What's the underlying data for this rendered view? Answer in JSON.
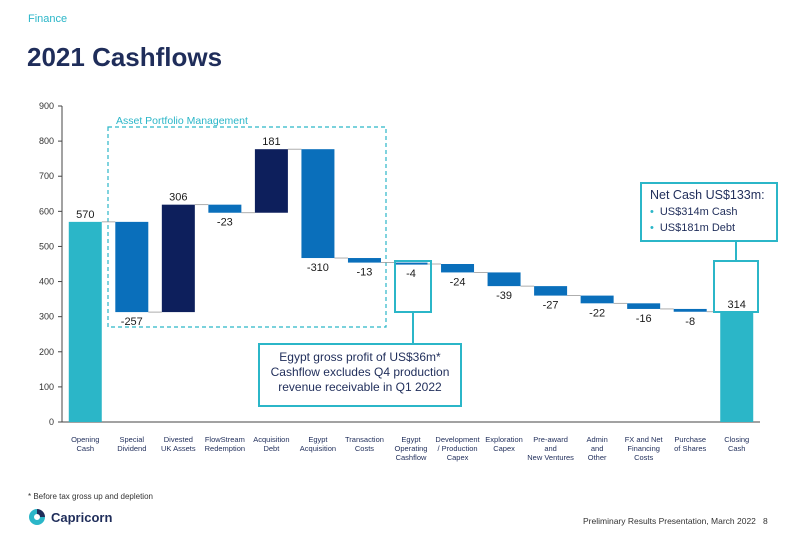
{
  "header": {
    "section": "Finance",
    "title": "2021 Cashflows"
  },
  "callouts": {
    "portfolio_label": "Asset Portfolio Management",
    "net_cash": {
      "title": "Net Cash US$133m:",
      "items": [
        "US$314m Cash",
        "US$181m Debt"
      ]
    },
    "egypt_note": [
      "Egypt gross profit of US$36m*",
      "Cashflow excludes Q4 production",
      "revenue receivable in Q1 2022"
    ]
  },
  "footer": {
    "footnote": "* Before tax gross up and depletion",
    "brand": "Capricorn",
    "presentation": "Preliminary Results Presentation, March 2022",
    "page": "8"
  },
  "colors": {
    "teal": "#2bb6c8",
    "blue": "#0a6fbb",
    "navy": "#0d1f5c",
    "title": "#1f2d5a"
  },
  "chart_data": {
    "type": "bar",
    "subtype": "waterfall",
    "ylim": [
      0,
      900
    ],
    "yticks": [
      0,
      100,
      200,
      300,
      400,
      500,
      600,
      700,
      800,
      900
    ],
    "bars": [
      {
        "label": [
          "Opening",
          "Cash"
        ],
        "start": 0,
        "end": 570,
        "value_label": "570",
        "kind": "total"
      },
      {
        "label": [
          "Special",
          "Dividend"
        ],
        "start": 570,
        "end": 313,
        "value_label": "-257",
        "kind": "blue"
      },
      {
        "label": [
          "Divested",
          "UK Assets"
        ],
        "start": 313,
        "end": 619,
        "value_label": "306",
        "kind": "navy"
      },
      {
        "label": [
          "FlowStream",
          "Redemption"
        ],
        "start": 619,
        "end": 596,
        "value_label": "-23",
        "kind": "blue"
      },
      {
        "label": [
          "Acquisition",
          "Debt"
        ],
        "start": 596,
        "end": 777,
        "value_label": "181",
        "kind": "navy"
      },
      {
        "label": [
          "Egypt",
          "Acquisition"
        ],
        "start": 777,
        "end": 467,
        "value_label": "-310",
        "kind": "blue"
      },
      {
        "label": [
          "Transaction",
          "Costs"
        ],
        "start": 467,
        "end": 454,
        "value_label": "-13",
        "kind": "blue"
      },
      {
        "label": [
          "Egypt",
          "Operating",
          "Cashflow"
        ],
        "start": 454,
        "end": 450,
        "value_label": "-4",
        "kind": "blue"
      },
      {
        "label": [
          "Development",
          "/ Production",
          "Capex"
        ],
        "start": 450,
        "end": 426,
        "value_label": "-24",
        "kind": "blue"
      },
      {
        "label": [
          "Exploration",
          "Capex"
        ],
        "start": 426,
        "end": 387,
        "value_label": "-39",
        "kind": "blue"
      },
      {
        "label": [
          "Pre-award",
          "and",
          "New Ventures"
        ],
        "start": 387,
        "end": 360,
        "value_label": "-27",
        "kind": "blue"
      },
      {
        "label": [
          "Admin",
          "and",
          "Other"
        ],
        "start": 360,
        "end": 338,
        "value_label": "-22",
        "kind": "blue"
      },
      {
        "label": [
          "FX and Net",
          "Financing",
          "Costs"
        ],
        "start": 338,
        "end": 322,
        "value_label": "-16",
        "kind": "blue"
      },
      {
        "label": [
          "Purchase",
          "of Shares"
        ],
        "start": 322,
        "end": 314,
        "value_label": "-8",
        "kind": "blue"
      },
      {
        "label": [
          "Closing",
          "Cash"
        ],
        "start": 0,
        "end": 314,
        "value_label": "314",
        "kind": "total"
      }
    ]
  }
}
